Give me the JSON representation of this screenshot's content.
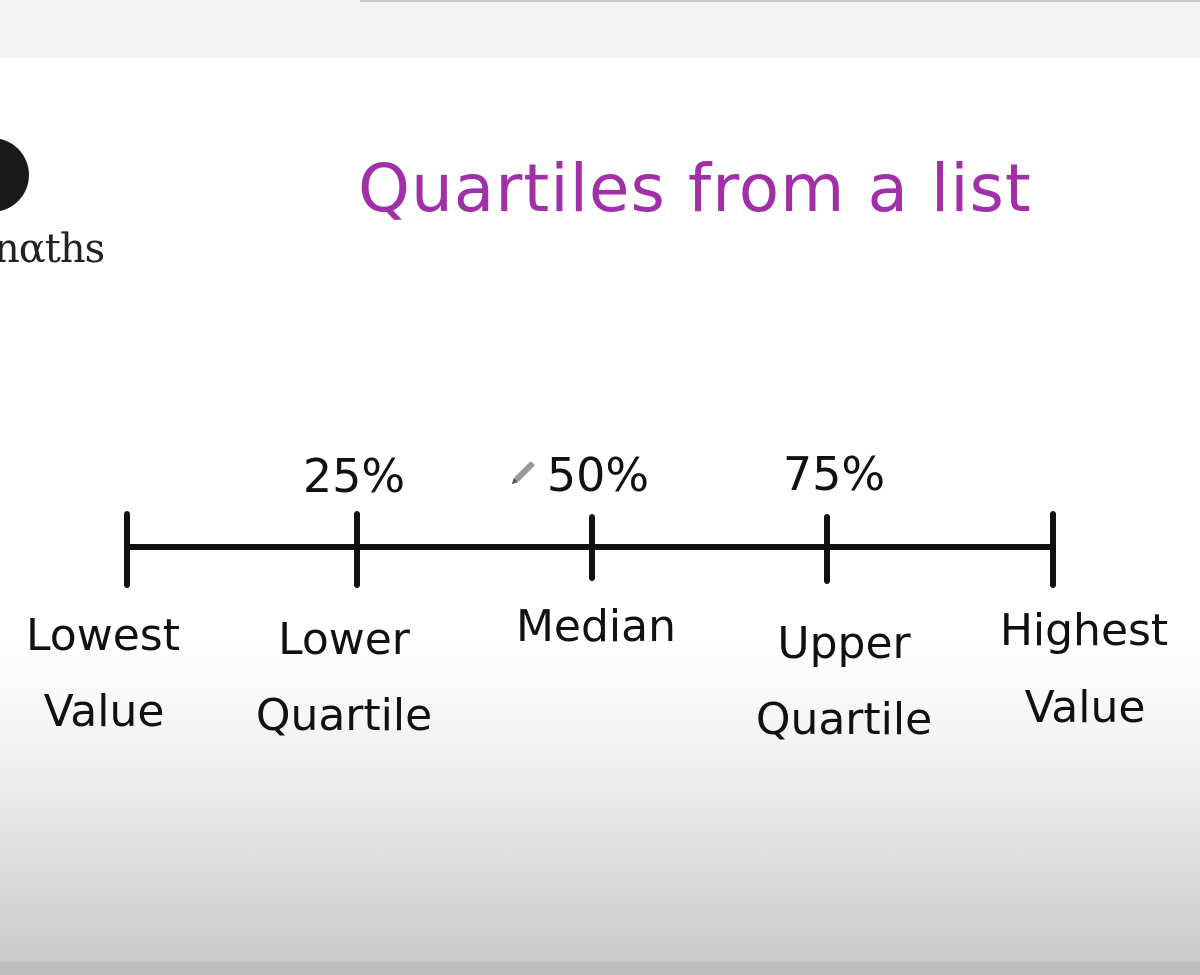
{
  "slide": {
    "title": "Quartiles from a list",
    "title_color": "#a12fa8"
  },
  "logo": {
    "text": "nαths",
    "mark_icon": "logo-circle-icon"
  },
  "diagram": {
    "percent_labels": [
      "25%",
      "50%",
      "75%"
    ],
    "points": [
      {
        "percent": "",
        "lines": [
          "Lowest",
          "Value"
        ]
      },
      {
        "percent": "25%",
        "lines": [
          "Lower",
          "Quartile"
        ]
      },
      {
        "percent": "50%",
        "lines": [
          "Median"
        ]
      },
      {
        "percent": "75%",
        "lines": [
          "Upper",
          "Quartile"
        ]
      },
      {
        "percent": "",
        "lines": [
          "Highest",
          "Value"
        ]
      }
    ],
    "pen_icon": "pen-cursor-icon"
  }
}
